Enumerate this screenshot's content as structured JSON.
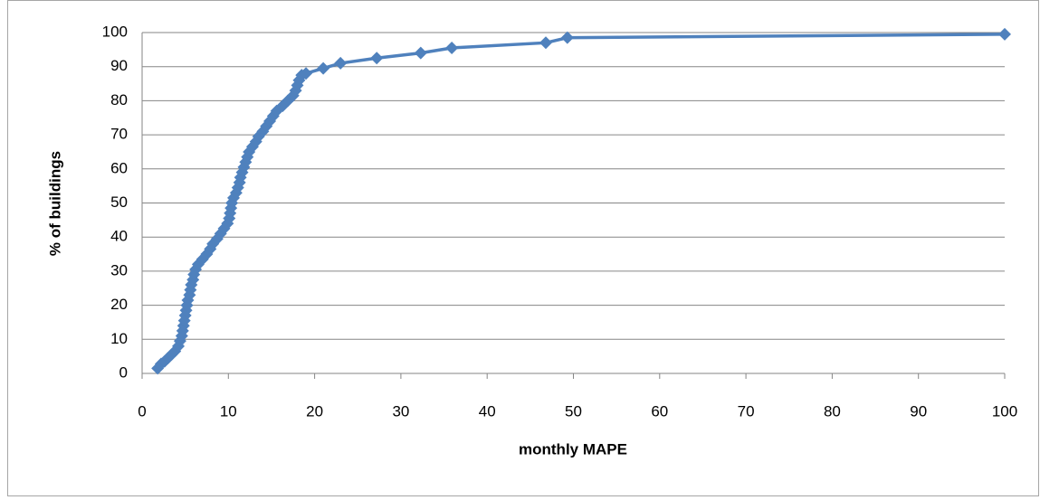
{
  "chart_data": {
    "type": "line",
    "x_label": "monthly MAPE",
    "y_label": "% of buildings",
    "series": [
      {
        "color": "#4f81bd",
        "x": [
          1.8,
          2.2,
          2.6,
          3.0,
          3.4,
          3.8,
          4.2,
          4.4,
          4.6,
          4.7,
          4.8,
          4.9,
          5.0,
          5.1,
          5.2,
          5.3,
          5.5,
          5.6,
          5.7,
          5.9,
          6.0,
          6.2,
          6.5,
          7.0,
          7.5,
          7.9,
          8.2,
          8.7,
          9.1,
          9.5,
          9.9,
          10.1,
          10.2,
          10.3,
          10.4,
          10.6,
          10.9,
          11.1,
          11.3,
          11.4,
          11.6,
          11.8,
          12.0,
          12.2,
          12.4,
          12.8,
          13.2,
          13.5,
          14.0,
          14.4,
          14.8,
          15.2,
          15.6,
          16.3,
          16.9,
          17.5,
          17.8,
          18.0,
          18.2,
          18.5,
          19.0,
          21.0,
          23.0,
          27.2,
          32.3,
          35.9,
          46.8,
          49.3,
          100
        ],
        "values": [
          1.5,
          2.8,
          3.5,
          4.5,
          5.5,
          6.5,
          8,
          9.5,
          11,
          12.5,
          14,
          15.5,
          17,
          18.5,
          20,
          21.5,
          23,
          24.5,
          26,
          27.5,
          29,
          30.5,
          32,
          33.5,
          35,
          36.5,
          38,
          39.5,
          41,
          42.5,
          44,
          45.5,
          47,
          48.5,
          50,
          51.5,
          53,
          54.5,
          56,
          57.5,
          59,
          60.5,
          62,
          63.5,
          65,
          66.5,
          68,
          69.5,
          71,
          72.5,
          74,
          75.5,
          77,
          78.5,
          80,
          81.5,
          83,
          84.5,
          86,
          87.5,
          88,
          89.5,
          91,
          92.5,
          94,
          95.5,
          97,
          98.5,
          99.5
        ]
      }
    ],
    "xlim": [
      0,
      100
    ],
    "xticks": [
      0,
      10,
      20,
      30,
      40,
      50,
      60,
      70,
      80,
      90,
      100
    ],
    "ylim": [
      0,
      100
    ],
    "yticks": [
      0,
      10,
      20,
      30,
      40,
      50,
      60,
      70,
      80,
      90,
      100
    ],
    "grid": true
  }
}
